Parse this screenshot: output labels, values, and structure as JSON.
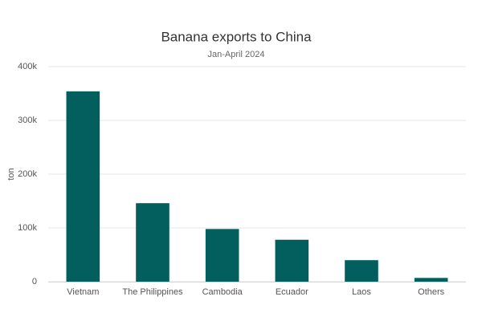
{
  "chart_data": {
    "type": "bar",
    "title": "Banana exports to China",
    "subtitle": "Jan-April 2024",
    "y_label": "ton",
    "categories": [
      "Vietnam",
      "The Philippines",
      "Cambodia",
      "Ecuador",
      "Laos",
      "Others"
    ],
    "values": [
      354000,
      146000,
      98000,
      78000,
      40000,
      7000
    ],
    "color": "#035f5e",
    "ylim": [
      0,
      400000
    ],
    "yticks": [
      0,
      {
        "value": 100000,
        "label": "100k"
      },
      {
        "value": 200000,
        "label": "200k"
      },
      {
        "value": 300000,
        "label": "300k"
      },
      {
        "value": 400000,
        "label": "400k"
      }
    ],
    "grid": true
  }
}
